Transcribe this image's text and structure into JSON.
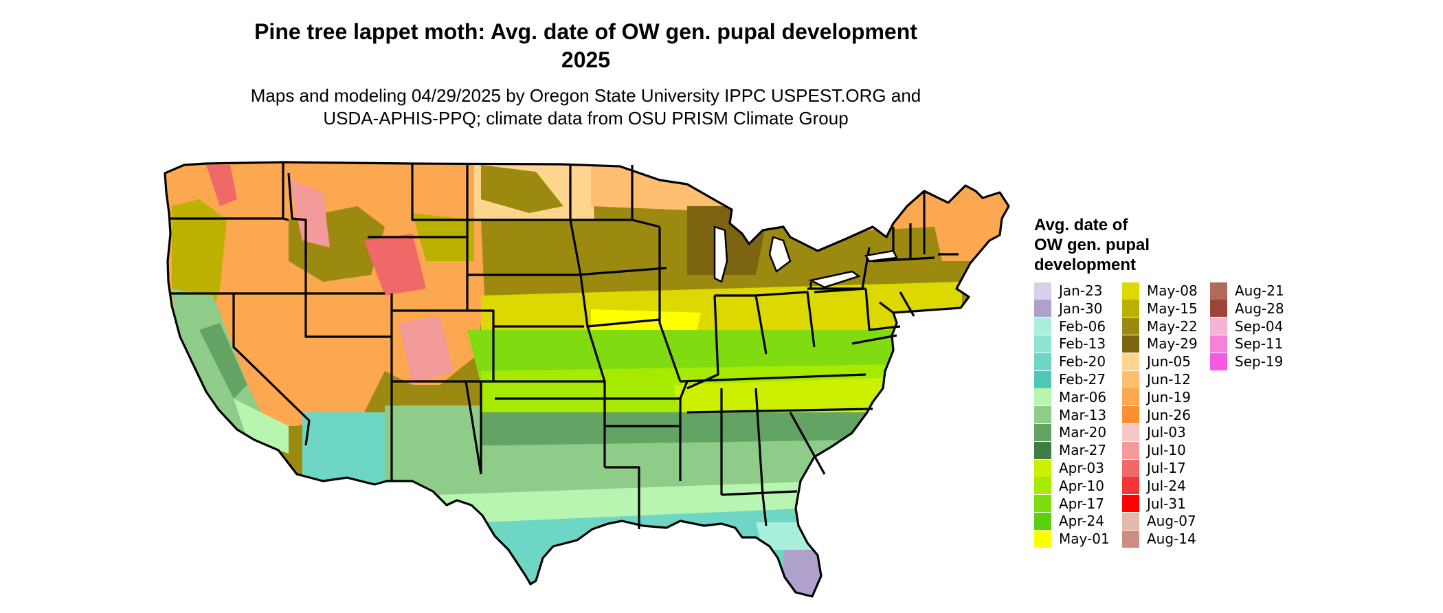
{
  "title": {
    "line1": "Pine tree lappet moth: Avg. date of OW gen. pupal development",
    "line2": "2025"
  },
  "subtitle": {
    "line1": "Maps and modeling 04/29/2025 by Oregon State University IPPC USPEST.ORG and",
    "line2": "USDA-APHIS-PPQ; climate data from OSU PRISM Climate Group"
  },
  "legend": {
    "title_lines": [
      "Avg. date of",
      "OW gen. pupal",
      "development"
    ],
    "items": [
      {
        "label": "Jan-23",
        "color": "#d9d0ea"
      },
      {
        "label": "Jan-30",
        "color": "#b0a0cc"
      },
      {
        "label": "Feb-06",
        "color": "#a8f0dd"
      },
      {
        "label": "Feb-13",
        "color": "#8ee4cf"
      },
      {
        "label": "Feb-20",
        "color": "#6dd6c4"
      },
      {
        "label": "Feb-27",
        "color": "#4fc6b6"
      },
      {
        "label": "Mar-06",
        "color": "#b8f5b0"
      },
      {
        "label": "Mar-13",
        "color": "#8fcc8a"
      },
      {
        "label": "Mar-20",
        "color": "#63a465"
      },
      {
        "label": "Mar-27",
        "color": "#3f7d45"
      },
      {
        "label": "Apr-03",
        "color": "#ccf000"
      },
      {
        "label": "Apr-10",
        "color": "#a6ea00"
      },
      {
        "label": "Apr-17",
        "color": "#80dc10"
      },
      {
        "label": "Apr-24",
        "color": "#5bcf10"
      },
      {
        "label": "May-01",
        "color": "#ffff00"
      },
      {
        "label": "May-08",
        "color": "#dcd800"
      },
      {
        "label": "May-15",
        "color": "#bcb000"
      },
      {
        "label": "May-22",
        "color": "#9c8a10"
      },
      {
        "label": "May-29",
        "color": "#7c6410"
      },
      {
        "label": "Jun-05",
        "color": "#ffd590"
      },
      {
        "label": "Jun-12",
        "color": "#ffbe70"
      },
      {
        "label": "Jun-19",
        "color": "#fca850"
      },
      {
        "label": "Jun-26",
        "color": "#fa9030"
      },
      {
        "label": "Jul-03",
        "color": "#f5c8c8"
      },
      {
        "label": "Jul-10",
        "color": "#f39a9a"
      },
      {
        "label": "Jul-17",
        "color": "#f06868"
      },
      {
        "label": "Jul-24",
        "color": "#f53535"
      },
      {
        "label": "Jul-31",
        "color": "#ff0000"
      },
      {
        "label": "Aug-07",
        "color": "#e5b8aa"
      },
      {
        "label": "Aug-14",
        "color": "#cc8e80"
      },
      {
        "label": "Aug-21",
        "color": "#b06a5c"
      },
      {
        "label": "Aug-28",
        "color": "#9a4538"
      },
      {
        "label": "Sep-04",
        "color": "#f7b2d8"
      },
      {
        "label": "Sep-11",
        "color": "#f582d8"
      },
      {
        "label": "Sep-19",
        "color": "#f55ae0"
      }
    ]
  },
  "map": {
    "state_border_color": "#000000",
    "zone_colors": {
      "north": "#9c8a10",
      "northern_mountains": "#fca850",
      "high_peaks": "#f06868",
      "great_plains_north": "#ffd590",
      "central": "#dcd800",
      "midlatitude": "#80dc10",
      "upper_south": "#a6ea00",
      "south": "#63a465",
      "gulf": "#8fcc8a",
      "gulf_coast": "#6dd6c4",
      "south_florida": "#b0a0cc",
      "southwest_desert": "#6dd6c4",
      "california_valley": "#8fcc8a",
      "pacific_coast": "#bcb000"
    }
  }
}
